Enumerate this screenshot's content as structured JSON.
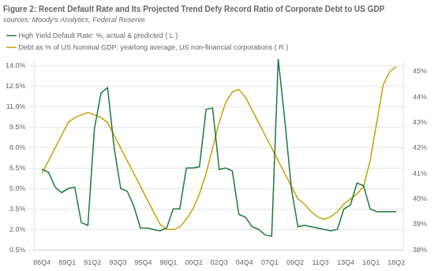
{
  "chart_data": {
    "type": "line",
    "title": "Figure 2: Recent Default Rate and Its Projected Trend Defy Record Ratio of Corporate Debt to US GDP",
    "subtitle": "sources: Moody's Analytics, Federal Reserve",
    "x": [
      0,
      0.2593,
      0.5185,
      0.7778,
      1.037,
      1.2963,
      1.5556,
      1.8148,
      2.0741,
      2.3333,
      2.5926,
      2.8519,
      3.1111,
      3.3704,
      3.6296,
      3.8889,
      4.1481,
      4.4074,
      4.6667,
      4.9259,
      5.1852,
      5.4444,
      5.7037,
      5.963,
      6.2222,
      6.4815,
      6.7407,
      7,
      7.2593,
      7.5185,
      7.7778,
      8.037,
      8.2963,
      8.5556,
      8.8148,
      9.0741,
      9.3333,
      9.5926,
      9.8519,
      10.1111,
      10.3704,
      10.6296,
      10.8889,
      11.1481,
      11.4074,
      11.6667,
      11.9259,
      12.1852,
      12.4444,
      12.7037,
      12.963,
      13.2222,
      13.4815,
      13.7407,
      14
    ],
    "xlim": [
      -0.3,
      14.3
    ],
    "xticks": [
      {
        "value": 0,
        "label": "86Q4"
      },
      {
        "value": 1,
        "label": "89Q1"
      },
      {
        "value": 2,
        "label": "91Q2"
      },
      {
        "value": 3,
        "label": "93Q3"
      },
      {
        "value": 4,
        "label": "95Q4"
      },
      {
        "value": 5,
        "label": "98Q1"
      },
      {
        "value": 6,
        "label": "00Q2"
      },
      {
        "value": 7,
        "label": "02Q3"
      },
      {
        "value": 8,
        "label": "04Q4"
      },
      {
        "value": 9,
        "label": "07Q1"
      },
      {
        "value": 10,
        "label": "09Q2"
      },
      {
        "value": 11,
        "label": "11Q3"
      },
      {
        "value": 12,
        "label": "13Q4"
      },
      {
        "value": 13,
        "label": "16Q1"
      },
      {
        "value": 14,
        "label": "18Q2"
      }
    ],
    "ylim": [
      0.5,
      14.5
    ],
    "yticks": [
      {
        "value": 0.5,
        "label": "0.5%"
      },
      {
        "value": 2.0,
        "label": "2.0%"
      },
      {
        "value": 3.5,
        "label": "3.5%"
      },
      {
        "value": 5.0,
        "label": "5.0%"
      },
      {
        "value": 6.5,
        "label": "6.5%"
      },
      {
        "value": 8.0,
        "label": "8.0%"
      },
      {
        "value": 9.5,
        "label": "9.5%"
      },
      {
        "value": 11.0,
        "label": "11.0%"
      },
      {
        "value": 12.5,
        "label": "12.5%"
      },
      {
        "value": 14.0,
        "label": "14.0%"
      }
    ],
    "y2lim": [
      38,
      45.5
    ],
    "y2ticks": [
      {
        "value": 38,
        "label": "38%"
      },
      {
        "value": 39,
        "label": "39%"
      },
      {
        "value": 40,
        "label": "40%"
      },
      {
        "value": 41,
        "label": "41%"
      },
      {
        "value": 42,
        "label": "42%"
      },
      {
        "value": 43,
        "label": "43%"
      },
      {
        "value": 44,
        "label": "44%"
      },
      {
        "value": 45,
        "label": "45%"
      }
    ],
    "grid": true,
    "legend": "top",
    "series": [
      {
        "name": "High Yield Default Rate: %, actual & predicted ( L )",
        "color": "#1a7a3c",
        "values": [
          6.4,
          6.2,
          5.1,
          4.7,
          5.0,
          5.1,
          2.5,
          2.3,
          9.4,
          12.0,
          12.4,
          8.0,
          5.0,
          4.8,
          3.7,
          2.1,
          2.1,
          2.0,
          1.9,
          2.1,
          3.5,
          3.5,
          6.5,
          6.5,
          6.6,
          10.8,
          10.9,
          6.4,
          6.5,
          6.3,
          3.1,
          2.9,
          2.2,
          2.0,
          1.6,
          1.5,
          14.5,
          10.0,
          5.0,
          2.2,
          2.3,
          2.2,
          2.1,
          2.0,
          1.9,
          2.0,
          3.5,
          3.8,
          5.4,
          5.2,
          3.5,
          3.3,
          3.3,
          3.3,
          3.3
        ]
      },
      {
        "name": "Debt as % of US Nominal GDP: yearlong average, US non-financial corporations ( R )",
        "color": "#c8a000",
        "axis": "y2",
        "values": [
          41.0,
          41.5,
          42.0,
          42.5,
          43.0,
          43.2,
          43.3,
          43.4,
          43.3,
          43.2,
          43.0,
          42.5,
          42.0,
          41.5,
          41.0,
          40.5,
          40.0,
          39.5,
          39.0,
          38.8,
          38.8,
          38.9,
          39.2,
          39.6,
          40.2,
          41.0,
          42.0,
          43.0,
          43.8,
          44.2,
          44.3,
          44.0,
          43.5,
          43.0,
          42.5,
          42.0,
          41.5,
          41.0,
          40.5,
          40.0,
          39.8,
          39.5,
          39.3,
          39.2,
          39.3,
          39.5,
          39.8,
          40.0,
          40.2,
          40.5,
          41.5,
          43.0,
          44.5,
          45.0,
          45.2
        ]
      }
    ]
  }
}
